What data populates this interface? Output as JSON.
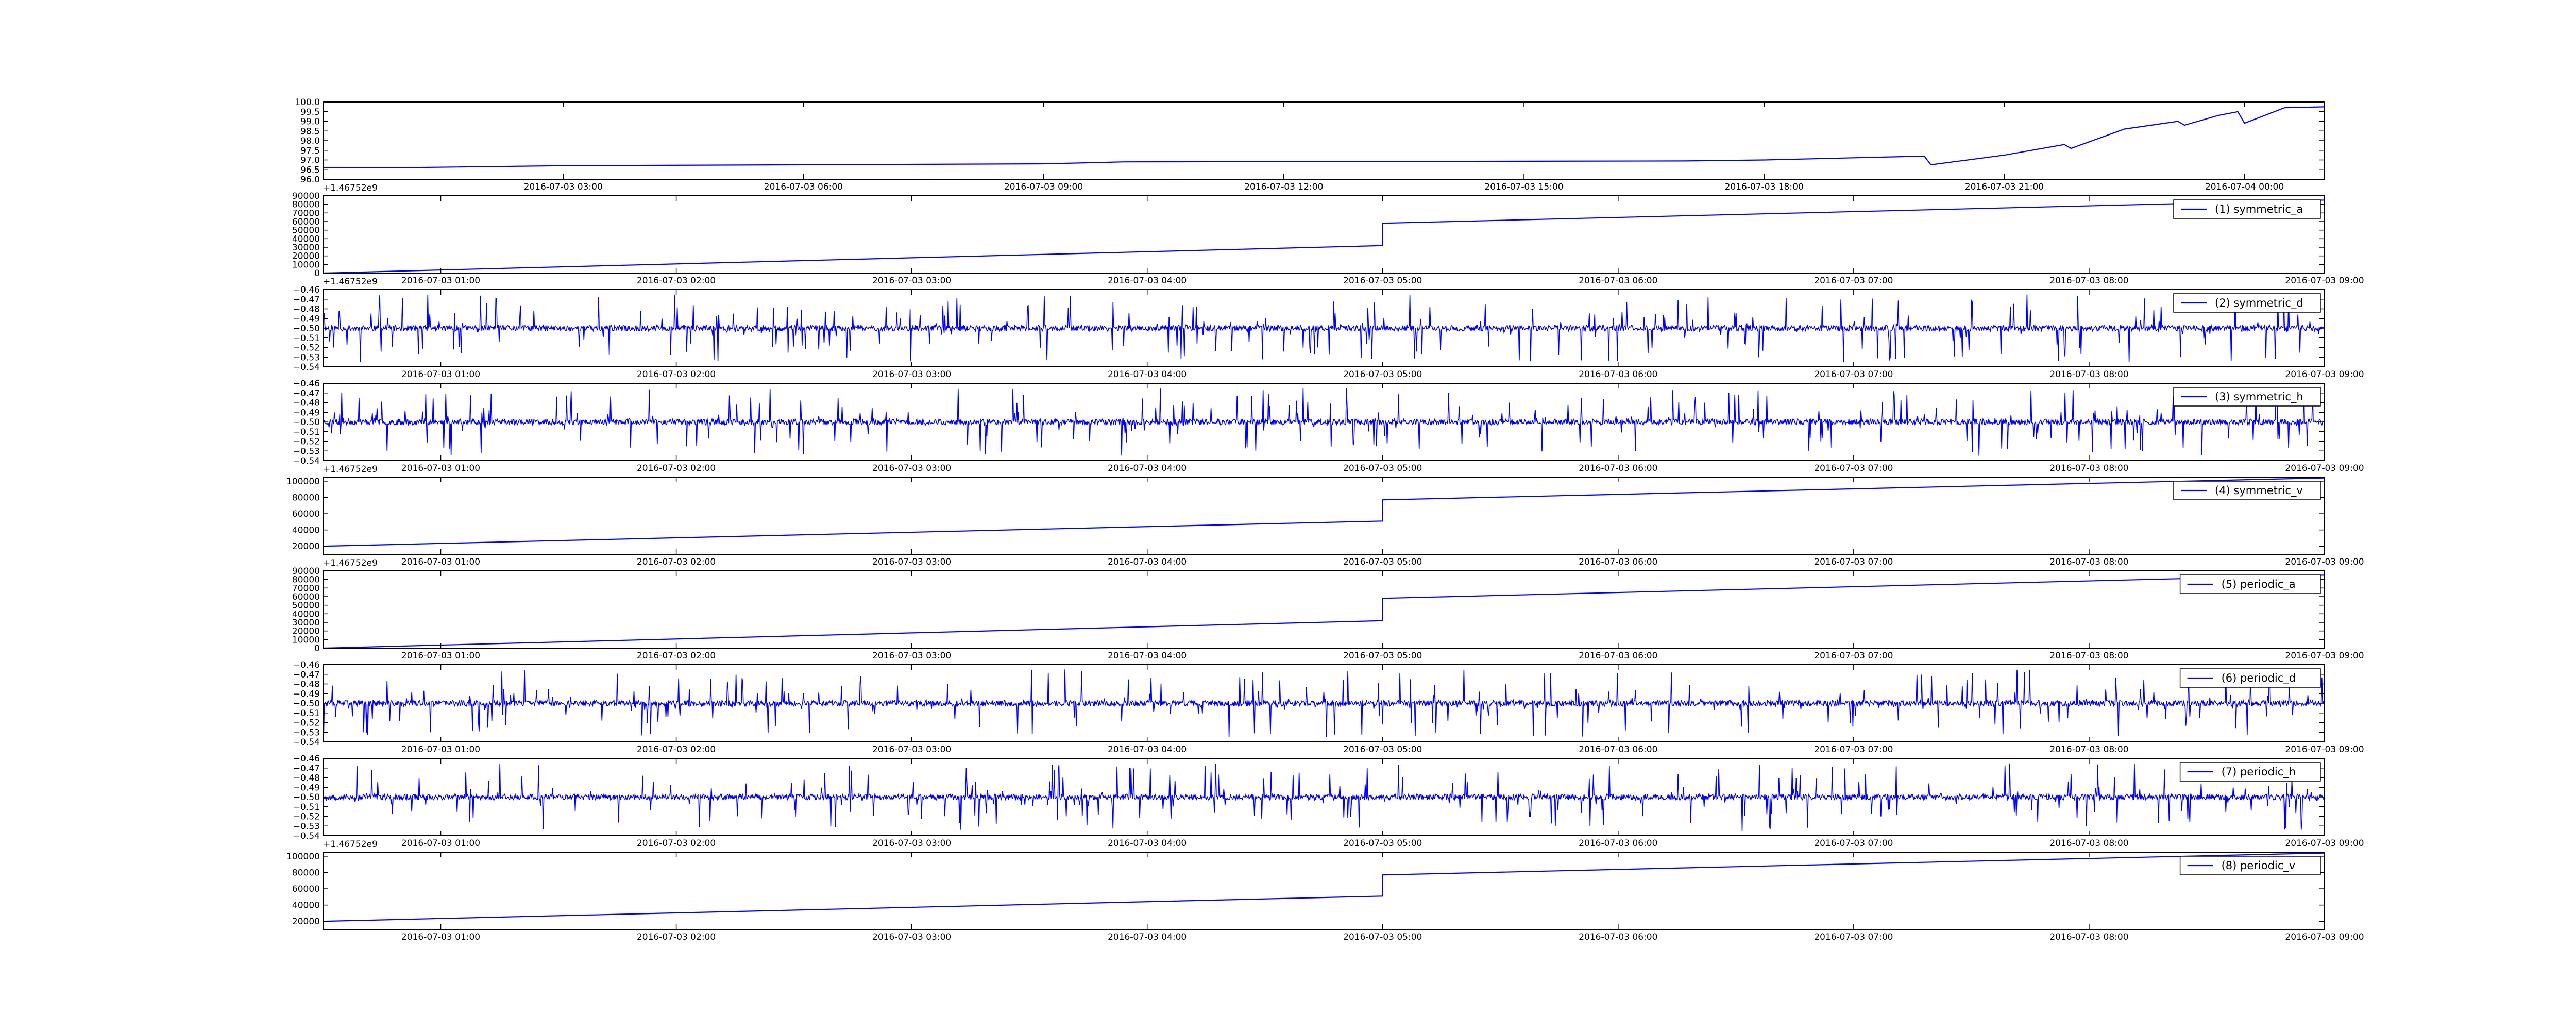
{
  "figure": {
    "line_color": "#0000ff",
    "axis_color": "#000000",
    "background": "#ffffff"
  },
  "chart_data": [
    {
      "type": "line",
      "title": "",
      "xlabel": "",
      "ylabel": "",
      "x_kind": "time",
      "x_offset_label": "+1.46752e9",
      "xlim": [
        "2016-07-03 00:00",
        "2016-07-04 01:00"
      ],
      "ylim": [
        96.0,
        100.0
      ],
      "yticks": [
        "96.0",
        "96.5",
        "97.0",
        "97.5",
        "98.0",
        "98.5",
        "99.0",
        "99.5",
        "100.0"
      ],
      "xticks": [
        "2016-07-03 03:00",
        "2016-07-03 06:00",
        "2016-07-03 09:00",
        "2016-07-03 12:00",
        "2016-07-03 15:00",
        "2016-07-03 18:00",
        "2016-07-03 21:00",
        "2016-07-04 00:00"
      ],
      "legend": null,
      "grid": false,
      "series": [
        {
          "x": [
            "2016-07-03 00:00",
            "2016-07-03 01:00",
            "2016-07-03 03:00",
            "2016-07-03 06:00",
            "2016-07-03 09:00",
            "2016-07-03 10:00",
            "2016-07-03 17:00",
            "2016-07-03 18:00",
            "2016-07-03 20:00",
            "2016-07-03 20:05",
            "2016-07-03 21:00",
            "2016-07-03 21:45",
            "2016-07-03 21:50",
            "2016-07-03 22:30",
            "2016-07-03 23:10",
            "2016-07-03 23:15",
            "2016-07-03 23:40",
            "2016-07-03 23:55",
            "2016-07-04 00:00",
            "2016-07-04 00:30",
            "2016-07-04 01:00"
          ],
          "values": [
            96.6,
            96.6,
            96.7,
            96.75,
            96.8,
            96.9,
            96.95,
            97.0,
            97.2,
            96.75,
            97.25,
            97.8,
            97.6,
            98.6,
            99.0,
            98.8,
            99.3,
            99.5,
            98.9,
            99.7,
            99.75
          ]
        }
      ]
    },
    {
      "type": "line",
      "title": "",
      "xlabel": "",
      "ylabel": "",
      "x_kind": "time",
      "x_offset_label": "+1.46752e9",
      "xlim": [
        "2016-07-03 00:30",
        "2016-07-03 09:00"
      ],
      "ylim": [
        0,
        90000
      ],
      "yticks": [
        "0",
        "10000",
        "20000",
        "30000",
        "40000",
        "50000",
        "60000",
        "70000",
        "80000",
        "90000"
      ],
      "xticks": [
        "2016-07-03 01:00",
        "2016-07-03 02:00",
        "2016-07-03 03:00",
        "2016-07-03 04:00",
        "2016-07-03 05:00",
        "2016-07-03 06:00",
        "2016-07-03 07:00",
        "2016-07-03 08:00",
        "2016-07-03 09:00"
      ],
      "legend": {
        "placement": "upper-right"
      },
      "grid": false,
      "series": [
        {
          "name": "(1) symmetric_a",
          "x": [
            "2016-07-03 00:30",
            "2016-07-03 05:00",
            "2016-07-03 05:00",
            "2016-07-03 09:00"
          ],
          "values": [
            0,
            32000,
            58000,
            85000
          ]
        }
      ]
    },
    {
      "type": "line",
      "title": "",
      "xlabel": "",
      "ylabel": "",
      "x_kind": "time",
      "x_offset_label": "",
      "xlim": [
        "2016-07-03 00:30",
        "2016-07-03 09:00"
      ],
      "ylim": [
        -0.54,
        -0.46
      ],
      "yticks": [
        "−0.54",
        "−0.53",
        "−0.52",
        "−0.51",
        "−0.50",
        "−0.49",
        "−0.48",
        "−0.47",
        "−0.46"
      ],
      "xticks": [
        "2016-07-03 01:00",
        "2016-07-03 02:00",
        "2016-07-03 03:00",
        "2016-07-03 04:00",
        "2016-07-03 05:00",
        "2016-07-03 06:00",
        "2016-07-03 07:00",
        "2016-07-03 08:00",
        "2016-07-03 09:00"
      ],
      "legend": {
        "placement": "upper-right"
      },
      "grid": false,
      "series": [
        {
          "name": "(2) symmetric_d",
          "kind": "noise",
          "baseline": -0.5,
          "amplitude": 0.003,
          "spike_range": [
            -0.535,
            -0.465
          ],
          "seed": 11
        }
      ]
    },
    {
      "type": "line",
      "title": "",
      "xlabel": "",
      "ylabel": "",
      "x_kind": "time",
      "x_offset_label": "+1.46752e9",
      "xlim": [
        "2016-07-03 00:30",
        "2016-07-03 09:00"
      ],
      "ylim": [
        -0.54,
        -0.46
      ],
      "yticks": [
        "−0.54",
        "−0.53",
        "−0.52",
        "−0.51",
        "−0.50",
        "−0.49",
        "−0.48",
        "−0.47",
        "−0.46"
      ],
      "xticks": [
        "2016-07-03 01:00",
        "2016-07-03 02:00",
        "2016-07-03 03:00",
        "2016-07-03 04:00",
        "2016-07-03 05:00",
        "2016-07-03 06:00",
        "2016-07-03 07:00",
        "2016-07-03 08:00",
        "2016-07-03 09:00"
      ],
      "legend": {
        "placement": "upper-right"
      },
      "grid": false,
      "series": [
        {
          "name": "(3) symmetric_h",
          "kind": "noise",
          "baseline": -0.5,
          "amplitude": 0.003,
          "spike_range": [
            -0.535,
            -0.465
          ],
          "seed": 23
        }
      ]
    },
    {
      "type": "line",
      "title": "",
      "xlabel": "",
      "ylabel": "",
      "x_kind": "time",
      "x_offset_label": "+1.46752e9",
      "xlim": [
        "2016-07-03 00:30",
        "2016-07-03 09:00"
      ],
      "ylim": [
        10000,
        105000
      ],
      "yticks": [
        "20000",
        "40000",
        "60000",
        "80000",
        "100000"
      ],
      "xticks": [
        "2016-07-03 01:00",
        "2016-07-03 02:00",
        "2016-07-03 03:00",
        "2016-07-03 04:00",
        "2016-07-03 05:00",
        "2016-07-03 06:00",
        "2016-07-03 07:00",
        "2016-07-03 08:00",
        "2016-07-03 09:00"
      ],
      "legend": {
        "placement": "upper-right"
      },
      "grid": false,
      "series": [
        {
          "name": "(4) symmetric_v",
          "x": [
            "2016-07-03 00:30",
            "2016-07-03 05:00",
            "2016-07-03 05:00",
            "2016-07-03 09:00"
          ],
          "values": [
            20000,
            51000,
            77000,
            104000
          ]
        }
      ]
    },
    {
      "type": "line",
      "title": "",
      "xlabel": "",
      "ylabel": "",
      "x_kind": "time",
      "x_offset_label": "",
      "xlim": [
        "2016-07-03 00:30",
        "2016-07-03 09:00"
      ],
      "ylim": [
        0,
        90000
      ],
      "yticks": [
        "0",
        "10000",
        "20000",
        "30000",
        "40000",
        "50000",
        "60000",
        "70000",
        "80000",
        "90000"
      ],
      "xticks": [
        "2016-07-03 01:00",
        "2016-07-03 02:00",
        "2016-07-03 03:00",
        "2016-07-03 04:00",
        "2016-07-03 05:00",
        "2016-07-03 06:00",
        "2016-07-03 07:00",
        "2016-07-03 08:00",
        "2016-07-03 09:00"
      ],
      "legend": {
        "placement": "upper-right"
      },
      "grid": false,
      "series": [
        {
          "name": "(5) periodic_a",
          "x": [
            "2016-07-03 00:30",
            "2016-07-03 05:00",
            "2016-07-03 05:00",
            "2016-07-03 09:00"
          ],
          "values": [
            0,
            32000,
            58000,
            85000
          ]
        }
      ]
    },
    {
      "type": "line",
      "title": "",
      "xlabel": "",
      "ylabel": "",
      "x_kind": "time",
      "x_offset_label": "",
      "xlim": [
        "2016-07-03 00:30",
        "2016-07-03 09:00"
      ],
      "ylim": [
        -0.54,
        -0.46
      ],
      "yticks": [
        "−0.54",
        "−0.53",
        "−0.52",
        "−0.51",
        "−0.50",
        "−0.49",
        "−0.48",
        "−0.47",
        "−0.46"
      ],
      "xticks": [
        "2016-07-03 01:00",
        "2016-07-03 02:00",
        "2016-07-03 03:00",
        "2016-07-03 04:00",
        "2016-07-03 05:00",
        "2016-07-03 06:00",
        "2016-07-03 07:00",
        "2016-07-03 08:00",
        "2016-07-03 09:00"
      ],
      "legend": {
        "placement": "upper-right"
      },
      "grid": false,
      "series": [
        {
          "name": "(6) periodic_d",
          "kind": "noise",
          "baseline": -0.5,
          "amplitude": 0.003,
          "spike_range": [
            -0.535,
            -0.465
          ],
          "seed": 37
        }
      ]
    },
    {
      "type": "line",
      "title": "",
      "xlabel": "",
      "ylabel": "",
      "x_kind": "time",
      "x_offset_label": "+1.46752e9",
      "xlim": [
        "2016-07-03 00:30",
        "2016-07-03 09:00"
      ],
      "ylim": [
        -0.54,
        -0.46
      ],
      "yticks": [
        "−0.54",
        "−0.53",
        "−0.52",
        "−0.51",
        "−0.50",
        "−0.49",
        "−0.48",
        "−0.47",
        "−0.46"
      ],
      "xticks": [
        "2016-07-03 01:00",
        "2016-07-03 02:00",
        "2016-07-03 03:00",
        "2016-07-03 04:00",
        "2016-07-03 05:00",
        "2016-07-03 06:00",
        "2016-07-03 07:00",
        "2016-07-03 08:00",
        "2016-07-03 09:00"
      ],
      "legend": {
        "placement": "upper-right"
      },
      "grid": false,
      "series": [
        {
          "name": "(7) periodic_h",
          "kind": "noise",
          "baseline": -0.5,
          "amplitude": 0.003,
          "spike_range": [
            -0.535,
            -0.465
          ],
          "seed": 53
        }
      ]
    },
    {
      "type": "line",
      "title": "",
      "xlabel": "",
      "ylabel": "",
      "x_kind": "time",
      "x_offset_label": "",
      "xlim": [
        "2016-07-03 00:30",
        "2016-07-03 09:00"
      ],
      "ylim": [
        10000,
        105000
      ],
      "yticks": [
        "20000",
        "40000",
        "60000",
        "80000",
        "100000"
      ],
      "xticks": [
        "2016-07-03 01:00",
        "2016-07-03 02:00",
        "2016-07-03 03:00",
        "2016-07-03 04:00",
        "2016-07-03 05:00",
        "2016-07-03 06:00",
        "2016-07-03 07:00",
        "2016-07-03 08:00",
        "2016-07-03 09:00"
      ],
      "legend": {
        "placement": "upper-right"
      },
      "grid": false,
      "series": [
        {
          "name": "(8) periodic_v",
          "x": [
            "2016-07-03 00:30",
            "2016-07-03 05:00",
            "2016-07-03 05:00",
            "2016-07-03 09:00"
          ],
          "values": [
            20000,
            51000,
            77000,
            104000
          ]
        }
      ]
    }
  ]
}
